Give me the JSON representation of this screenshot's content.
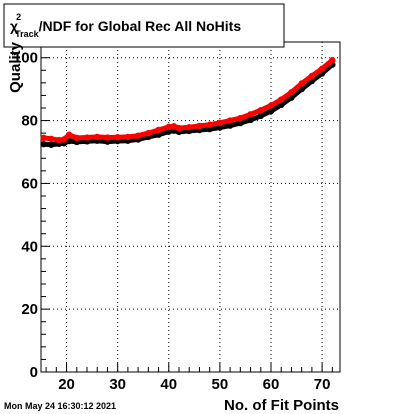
{
  "chart_data": {
    "type": "scatter",
    "title": {
      "chi_symbol": "χ",
      "superscript": "2",
      "subscript": "Track",
      "text": "/NDF for Global Rec All NoHits"
    },
    "xlabel": "No. of Fit Points",
    "ylabel": "Quality",
    "xlim": [
      15,
      73.5
    ],
    "ylim": [
      0,
      105
    ],
    "x_ticks": [
      20,
      30,
      40,
      50,
      60,
      70
    ],
    "y_ticks": [
      0,
      20,
      40,
      60,
      80,
      100
    ],
    "x_tick_labels": [
      "20",
      "30",
      "40",
      "50",
      "60",
      "70"
    ],
    "y_tick_labels": [
      "0",
      "20",
      "40",
      "60",
      "80",
      "100"
    ],
    "grid": true,
    "series": [
      {
        "color": "#000000",
        "x": [
          15.5,
          17,
          18.5,
          19.5,
          20.5,
          22,
          24,
          26,
          28,
          30,
          32,
          34,
          36,
          38,
          40,
          41,
          42,
          44,
          46,
          48,
          50,
          52,
          54,
          56,
          58,
          60,
          62,
          64,
          66,
          68,
          70,
          72
        ],
        "y": [
          72.5,
          72.3,
          72.6,
          72.8,
          73.5,
          73.2,
          73.4,
          73.6,
          73.3,
          73.5,
          73.6,
          74.0,
          74.8,
          75.5,
          76.5,
          76.8,
          76.4,
          76.7,
          77.0,
          77.3,
          77.8,
          78.4,
          79.2,
          80.2,
          81.5,
          83.0,
          85.0,
          87.3,
          90.0,
          92.6,
          95.0,
          97.8
        ]
      },
      {
        "color": "#ff0000",
        "x": [
          15.5,
          17,
          18.5,
          19.5,
          20.5,
          22,
          24,
          26,
          28,
          30,
          32,
          34,
          36,
          38,
          40,
          41,
          42,
          44,
          46,
          48,
          50,
          52,
          54,
          56,
          58,
          60,
          62,
          64,
          66,
          68,
          70,
          72
        ],
        "y": [
          74.5,
          74.2,
          73.8,
          74.0,
          75.5,
          74.5,
          74.6,
          74.8,
          74.6,
          74.7,
          74.8,
          75.2,
          76.0,
          77.0,
          78.0,
          78.2,
          77.6,
          77.9,
          78.3,
          78.7,
          79.3,
          80.0,
          80.8,
          82.0,
          83.3,
          84.8,
          86.7,
          89.0,
          91.8,
          94.2,
          96.5,
          99.2
        ]
      }
    ]
  },
  "footer": {
    "timestamp": "Mon May 24 16:30:12 2021"
  }
}
